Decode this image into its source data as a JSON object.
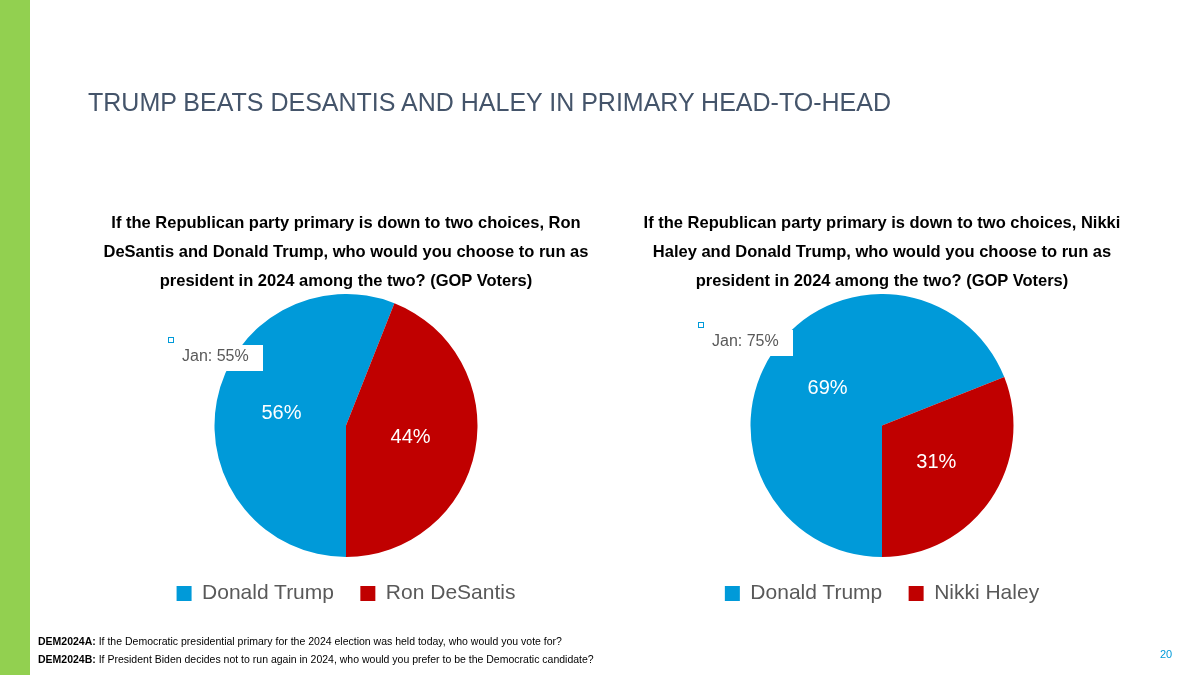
{
  "chart_data": [
    {
      "type": "pie",
      "title": "TRUMP BEATS DESANTIS AND HALEY IN PRIMARY HEAD-TO-HEAD",
      "subtitle": "If the Republican party primary is down to two choices, Ron DeSantis and Donald Trump, who would you choose to run as president in 2024 among the two? (GOP Voters)",
      "categories": [
        "Donald Trump",
        "Ron DeSantis"
      ],
      "values": [
        56,
        44
      ],
      "colors": [
        "#009ad9",
        "#c00000"
      ],
      "value_labels": [
        "56%",
        "44%"
      ],
      "legend": "bottom",
      "annotations": [
        "Jan: 55%"
      ]
    },
    {
      "type": "pie",
      "subtitle": "If the Republican party primary is down to two choices, Nikki Haley and Donald Trump, who would you choose to run as president in 2024 among the two? (GOP Voters)",
      "categories": [
        "Donald Trump",
        "Nikki Haley"
      ],
      "values": [
        69,
        31
      ],
      "colors": [
        "#009ad9",
        "#c00000"
      ],
      "value_labels": [
        "69%",
        "31%"
      ],
      "legend": "bottom",
      "annotations": [
        "Jan: 75%",
        "DEM2024A: If the Democratic presidential primary for the 2024 election was held today, who would you vote for?",
        "DEM2024B: If President Biden decides not to run again in 2024, who would you prefer to be the Democratic candidate?",
        "20"
      ]
    }
  ]
}
